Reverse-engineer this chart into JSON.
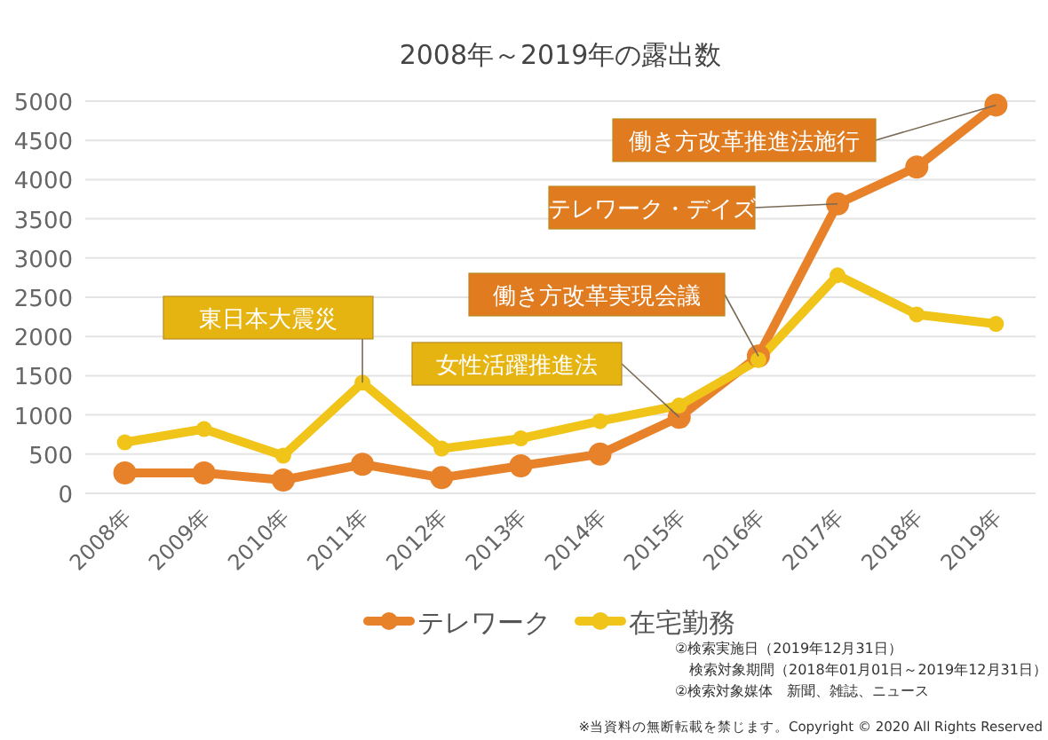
{
  "chart_data": {
    "type": "line",
    "title": "2008年～2019年の露出数",
    "categories": [
      "2008年",
      "2009年",
      "2010年",
      "2011年",
      "2012年",
      "2013年",
      "2014年",
      "2015年",
      "2016年",
      "2017年",
      "2018年",
      "2019年"
    ],
    "series": [
      {
        "name": "テレワーク",
        "color": "#e8822a",
        "values": [
          260,
          260,
          170,
          370,
          200,
          350,
          500,
          970,
          1750,
          3690,
          4160,
          4950
        ]
      },
      {
        "name": "在宅勤務",
        "color": "#f0c419",
        "values": [
          650,
          820,
          480,
          1410,
          570,
          700,
          920,
          1120,
          1700,
          2780,
          2280,
          2160
        ]
      }
    ],
    "ylim": [
      0,
      5000
    ],
    "yticks": [
      0,
      500,
      1000,
      1500,
      2000,
      2500,
      3000,
      3500,
      4000,
      4500,
      5000
    ],
    "grid": "y",
    "legend": "bottom",
    "marker": "circle",
    "line_style": "solid",
    "annotations": [
      {
        "text": "東日本大震災",
        "x": "2011年",
        "y": 1410
      },
      {
        "text": "女性活躍推進法",
        "x": "2015年",
        "y": 970
      },
      {
        "text": "働き方改革実現会議",
        "x": "2016年",
        "y": 1750
      },
      {
        "text": "テレワーク・デイズ",
        "x": "2017年",
        "y": 3690
      },
      {
        "text": "働き方改革推進法施行",
        "x": "2019年",
        "y": 4950
      },
      "②検索実施日（2019年12月31日）",
      "検索対象期間（2018年01月01日～2019年12月31日）",
      "②検索対象媒体　新聞、雑誌、ニュース",
      "※当資料の無断転載を禁じます。Copyright © 2020 All Rights Reserved"
    ]
  }
}
